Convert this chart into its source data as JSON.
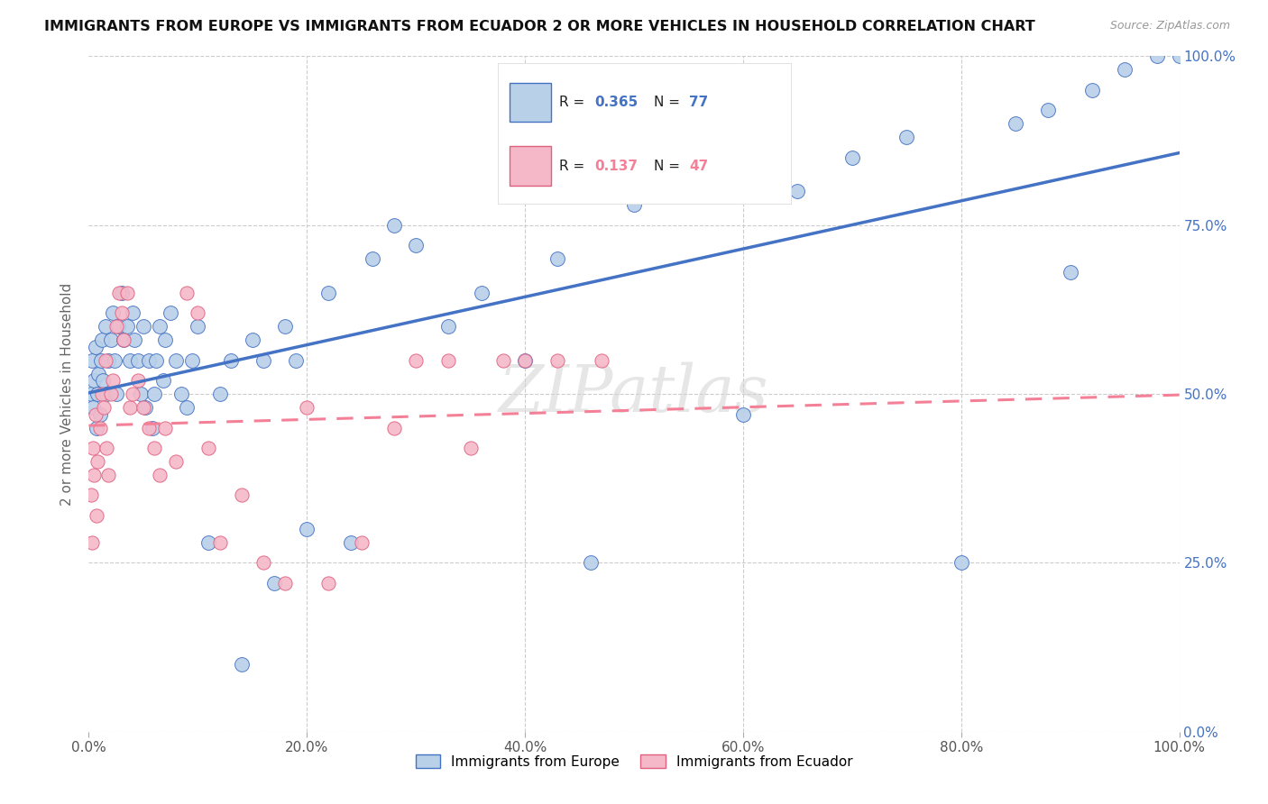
{
  "title": "IMMIGRANTS FROM EUROPE VS IMMIGRANTS FROM ECUADOR 2 OR MORE VEHICLES IN HOUSEHOLD CORRELATION CHART",
  "source": "Source: ZipAtlas.com",
  "ylabel": "2 or more Vehicles in Household",
  "legend_europe": "Immigrants from Europe",
  "legend_ecuador": "Immigrants from Ecuador",
  "r_europe": 0.365,
  "n_europe": 77,
  "r_ecuador": 0.137,
  "n_ecuador": 47,
  "color_europe": "#b8d0e8",
  "color_ecuador": "#f5b8c8",
  "line_europe": "#4472c4",
  "line_ecuador": "#f48098",
  "watermark": "ZIPatlas",
  "europe_x": [
    0.2,
    0.3,
    0.4,
    0.5,
    0.6,
    0.7,
    0.8,
    0.9,
    1.0,
    1.1,
    1.2,
    1.3,
    1.5,
    1.6,
    1.8,
    2.0,
    2.2,
    2.4,
    2.5,
    2.7,
    3.0,
    3.2,
    3.5,
    3.8,
    4.0,
    4.2,
    4.5,
    4.8,
    5.0,
    5.2,
    5.5,
    5.8,
    6.0,
    6.2,
    6.5,
    6.8,
    7.0,
    7.5,
    8.0,
    8.5,
    9.0,
    9.5,
    10.0,
    11.0,
    12.0,
    13.0,
    14.0,
    15.0,
    16.0,
    17.0,
    18.0,
    19.0,
    20.0,
    22.0,
    24.0,
    26.0,
    28.0,
    30.0,
    33.0,
    36.0,
    40.0,
    43.0,
    46.0,
    50.0,
    55.0,
    60.0,
    65.0,
    70.0,
    75.0,
    80.0,
    85.0,
    88.0,
    90.0,
    92.0,
    95.0,
    98.0,
    100.0
  ],
  "europe_y": [
    50.0,
    55.0,
    48.0,
    52.0,
    57.0,
    45.0,
    50.0,
    53.0,
    47.0,
    55.0,
    58.0,
    52.0,
    60.0,
    50.0,
    55.0,
    58.0,
    62.0,
    55.0,
    50.0,
    60.0,
    65.0,
    58.0,
    60.0,
    55.0,
    62.0,
    58.0,
    55.0,
    50.0,
    60.0,
    48.0,
    55.0,
    45.0,
    50.0,
    55.0,
    60.0,
    52.0,
    58.0,
    62.0,
    55.0,
    50.0,
    48.0,
    55.0,
    60.0,
    28.0,
    50.0,
    55.0,
    10.0,
    58.0,
    55.0,
    22.0,
    60.0,
    55.0,
    30.0,
    65.0,
    28.0,
    70.0,
    75.0,
    72.0,
    60.0,
    65.0,
    55.0,
    70.0,
    25.0,
    78.0,
    82.0,
    47.0,
    80.0,
    85.0,
    88.0,
    25.0,
    90.0,
    92.0,
    68.0,
    95.0,
    98.0,
    100.0,
    100.0
  ],
  "ecuador_x": [
    0.2,
    0.3,
    0.4,
    0.5,
    0.6,
    0.7,
    0.8,
    1.0,
    1.2,
    1.4,
    1.5,
    1.6,
    1.8,
    2.0,
    2.2,
    2.5,
    2.8,
    3.0,
    3.2,
    3.5,
    3.8,
    4.0,
    4.5,
    5.0,
    5.5,
    6.0,
    6.5,
    7.0,
    8.0,
    9.0,
    10.0,
    11.0,
    12.0,
    14.0,
    16.0,
    18.0,
    20.0,
    22.0,
    25.0,
    28.0,
    30.0,
    33.0,
    35.0,
    38.0,
    40.0,
    43.0,
    47.0
  ],
  "ecuador_y": [
    35.0,
    28.0,
    42.0,
    38.0,
    47.0,
    32.0,
    40.0,
    45.0,
    50.0,
    48.0,
    55.0,
    42.0,
    38.0,
    50.0,
    52.0,
    60.0,
    65.0,
    62.0,
    58.0,
    65.0,
    48.0,
    50.0,
    52.0,
    48.0,
    45.0,
    42.0,
    38.0,
    45.0,
    40.0,
    65.0,
    62.0,
    42.0,
    28.0,
    35.0,
    25.0,
    22.0,
    48.0,
    22.0,
    28.0,
    45.0,
    55.0,
    55.0,
    42.0,
    55.0,
    55.0,
    55.0,
    55.0
  ]
}
